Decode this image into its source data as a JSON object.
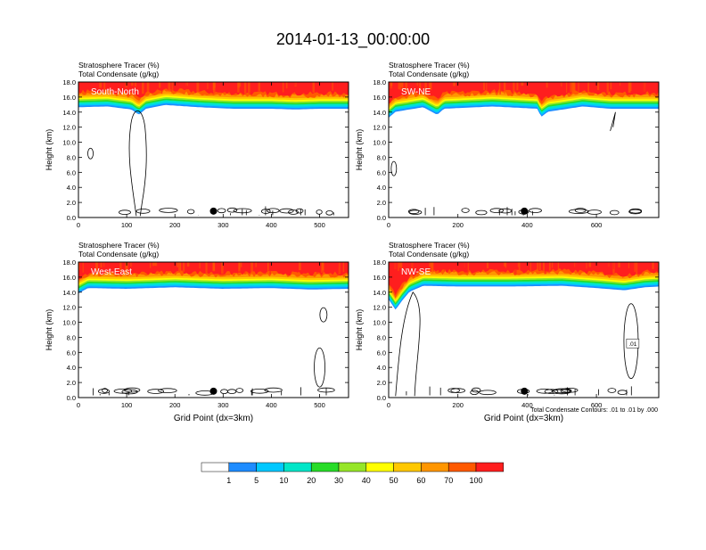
{
  "main_title": "2014-01-13_00:00:00",
  "colors": {
    "levels": [
      "#ffffff",
      "#1e8cff",
      "#00c8ff",
      "#00e6c8",
      "#28dc28",
      "#96e628",
      "#ffff00",
      "#ffc800",
      "#ff9600",
      "#ff5a00",
      "#ff1e1e"
    ],
    "contour": "#000000"
  },
  "colorbar": {
    "labels": [
      "1",
      "5",
      "10",
      "20",
      "30",
      "40",
      "50",
      "60",
      "70",
      "100"
    ]
  },
  "footnote": "Total Condensate Contours: .01 to .01 by .000",
  "chart_data": [
    {
      "type": "heatmap",
      "panel_label": "South-North",
      "subtitle_line1": "Stratosphere Tracer   (%)",
      "subtitle_line2": "Total Condensate   (g/kg)",
      "ylabel": "Height (km)",
      "xlabel": "",
      "xlim": [
        0,
        560
      ],
      "ylim": [
        0,
        18
      ],
      "xticks": [
        "0",
        "100",
        "200",
        "300",
        "400",
        "500"
      ],
      "yticks": [
        "0.0",
        "2.0",
        "4.0",
        "6.0",
        "8.0",
        "10.0",
        "12.0",
        "14.0",
        "16.0",
        "18.0"
      ],
      "marker_x": 280,
      "tropopause_km": [
        [
          0,
          15.2
        ],
        [
          60,
          15.3
        ],
        [
          110,
          14.9
        ],
        [
          125,
          14.2
        ],
        [
          140,
          15.0
        ],
        [
          180,
          15.5
        ],
        [
          250,
          15.2
        ],
        [
          320,
          15.0
        ],
        [
          400,
          15.0
        ],
        [
          450,
          14.9
        ],
        [
          500,
          15.0
        ],
        [
          560,
          15.0
        ]
      ],
      "contour_labels": [],
      "legend_labels": [],
      "tracer_note": ""
    },
    {
      "type": "heatmap",
      "panel_label": "SW-NE",
      "subtitle_line1": "Stratosphere Tracer   (%)",
      "subtitle_line2": "Total Condensate   (g/kg)",
      "ylabel": "Height (km)",
      "xlabel": "",
      "xlim": [
        0,
        780
      ],
      "ylim": [
        0,
        18
      ],
      "xticks": [
        "0",
        "200",
        "400",
        "600"
      ],
      "yticks": [
        "0.0",
        "2.0",
        "4.0",
        "6.0",
        "8.0",
        "10.0",
        "12.0",
        "14.0",
        "16.0",
        "18.0"
      ],
      "marker_x": 392,
      "tropopause_km": [
        [
          0,
          13.8
        ],
        [
          20,
          14.6
        ],
        [
          100,
          15.2
        ],
        [
          140,
          14.2
        ],
        [
          160,
          15.0
        ],
        [
          300,
          15.3
        ],
        [
          430,
          15.0
        ],
        [
          440,
          13.9
        ],
        [
          460,
          14.6
        ],
        [
          560,
          15.3
        ],
        [
          640,
          15.0
        ],
        [
          780,
          15.0
        ]
      ],
      "contour_labels": [],
      "legend_labels": [],
      "tracer_note": ""
    },
    {
      "type": "heatmap",
      "panel_label": "West-East",
      "subtitle_line1": "Stratosphere Tracer   (%)",
      "subtitle_line2": "Total Condensate   (g/kg)",
      "ylabel": "Height (km)",
      "xlabel": "Grid Point (dx=3km)",
      "xlim": [
        0,
        560
      ],
      "ylim": [
        0,
        18
      ],
      "xticks": [
        "0",
        "100",
        "200",
        "300",
        "400",
        "500"
      ],
      "yticks": [
        "0.0",
        "2.0",
        "4.0",
        "6.0",
        "8.0",
        "10.0",
        "12.0",
        "14.0",
        "16.0",
        "18.0"
      ],
      "marker_x": 280,
      "tropopause_km": [
        [
          0,
          14.4
        ],
        [
          20,
          15.1
        ],
        [
          100,
          15.0
        ],
        [
          200,
          15.2
        ],
        [
          300,
          15.0
        ],
        [
          400,
          15.1
        ],
        [
          480,
          14.9
        ],
        [
          560,
          15.0
        ]
      ],
      "contour_labels": [],
      "legend_labels": [],
      "tracer_note": ""
    },
    {
      "type": "heatmap",
      "panel_label": "NW-SE",
      "subtitle_line1": "Stratosphere Tracer   (%)",
      "subtitle_line2": "Total Condensate   (g/kg)",
      "ylabel": "Height (km)",
      "xlabel": "Grid Point (dx=3km)",
      "xlim": [
        0,
        780
      ],
      "ylim": [
        0,
        18
      ],
      "xticks": [
        "0",
        "200",
        "400",
        "600"
      ],
      "yticks": [
        "0.0",
        "2.0",
        "4.0",
        "6.0",
        "8.0",
        "10.0",
        "12.0",
        "14.0",
        "16.0",
        "18.0"
      ],
      "marker_x": 392,
      "tropopause_km": [
        [
          0,
          13.6
        ],
        [
          20,
          12.2
        ],
        [
          40,
          13.5
        ],
        [
          60,
          14.6
        ],
        [
          100,
          15.4
        ],
        [
          200,
          15.3
        ],
        [
          350,
          15.3
        ],
        [
          500,
          15.4
        ],
        [
          600,
          15.1
        ],
        [
          680,
          14.8
        ],
        [
          740,
          15.2
        ],
        [
          780,
          15.3
        ]
      ],
      "contour_labels": [
        ".01"
      ],
      "legend_labels": [],
      "tracer_note": ""
    }
  ]
}
